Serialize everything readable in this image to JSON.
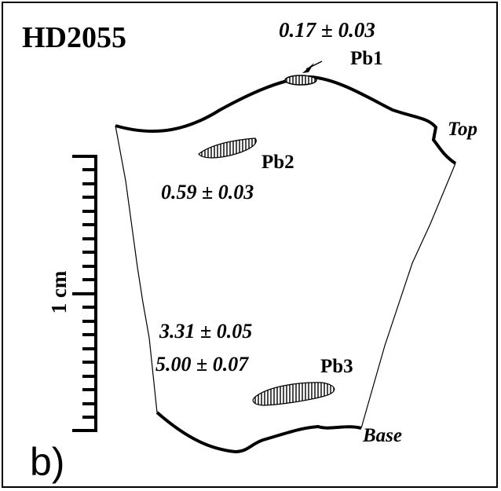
{
  "title": "HD2055",
  "panel_label": "b)",
  "scale_label": "1 cm",
  "orientation": {
    "top": "Top",
    "base": "Base"
  },
  "inclusions": [
    {
      "label": "Pb1",
      "values": [
        "0.17 ± 0.03"
      ]
    },
    {
      "label": "Pb2",
      "values": [
        "0.59 ± 0.03"
      ]
    },
    {
      "label": "Pb3",
      "values": [
        "3.31 ± 0.05",
        "5.00 ± 0.07"
      ]
    }
  ]
}
